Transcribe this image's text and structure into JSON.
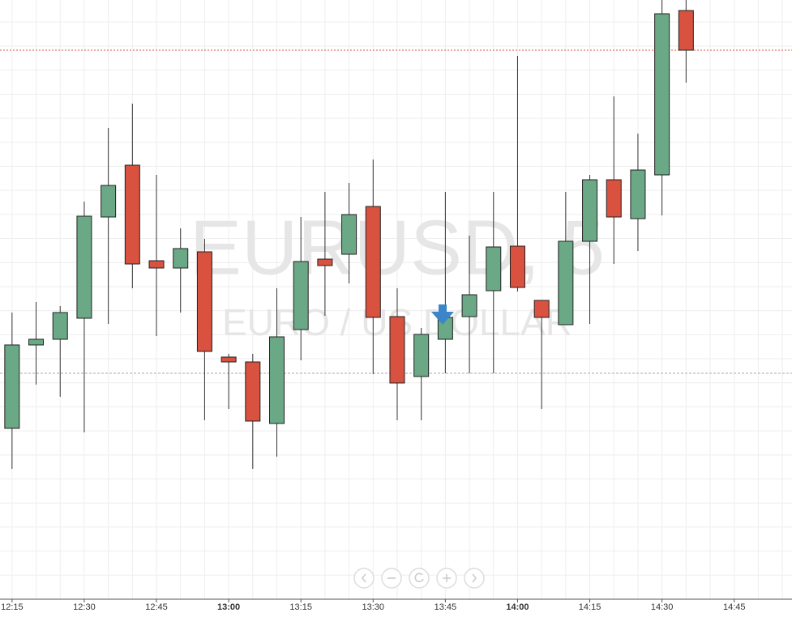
{
  "chart_data": {
    "type": "candlestick",
    "watermark": "EURUSD, 5",
    "watermark_subtitle": "EURO / US DOLLAR",
    "up_color": "#6ba886",
    "down_color": "#d9513f",
    "xlim": [
      -0.5,
      32.4
    ],
    "xticks": [
      {
        "value": 0,
        "label": "12:15"
      },
      {
        "value": 3,
        "label": "12:30"
      },
      {
        "value": 6,
        "label": "12:45"
      },
      {
        "value": 9,
        "label": "13:00"
      },
      {
        "value": 12,
        "label": "13:15"
      },
      {
        "value": 15,
        "label": "13:30"
      },
      {
        "value": 18,
        "label": "13:45"
      },
      {
        "value": 21,
        "label": "14:00"
      },
      {
        "value": 24,
        "label": "14:15"
      },
      {
        "value": 27,
        "label": "14:30"
      },
      {
        "value": 30,
        "label": "14:45"
      }
    ],
    "ylim": [
      0,
      762
    ],
    "last_price_line": 700,
    "reference_line": 301,
    "open": [
      233,
      336,
      343,
      369,
      494,
      558,
      440,
      431,
      451,
      321,
      315,
      239,
      355,
      442,
      448,
      507,
      371,
      297,
      343,
      371,
      403,
      458,
      391,
      361,
      464,
      540,
      492,
      546,
      749
    ],
    "high": [
      376,
      389,
      384,
      513,
      604,
      634,
      546,
      480,
      467,
      325,
      325,
      406,
      494,
      525,
      536,
      565,
      406,
      357,
      525,
      471,
      525,
      693,
      391,
      525,
      546,
      643,
      597,
      762,
      762
    ],
    "low": [
      183,
      287,
      272,
      228,
      362,
      406,
      347,
      376,
      243,
      257,
      183,
      198,
      317,
      372,
      412,
      300,
      243,
      243,
      301,
      301,
      301,
      402,
      257,
      361,
      362,
      436,
      452,
      496,
      660
    ],
    "close": [
      336,
      343,
      376,
      495,
      533,
      436,
      431,
      455,
      328,
      315,
      242,
      346,
      439,
      434,
      497,
      370,
      289,
      349,
      370,
      398,
      457,
      407,
      370,
      464,
      540,
      494,
      552,
      745,
      700
    ]
  }
}
